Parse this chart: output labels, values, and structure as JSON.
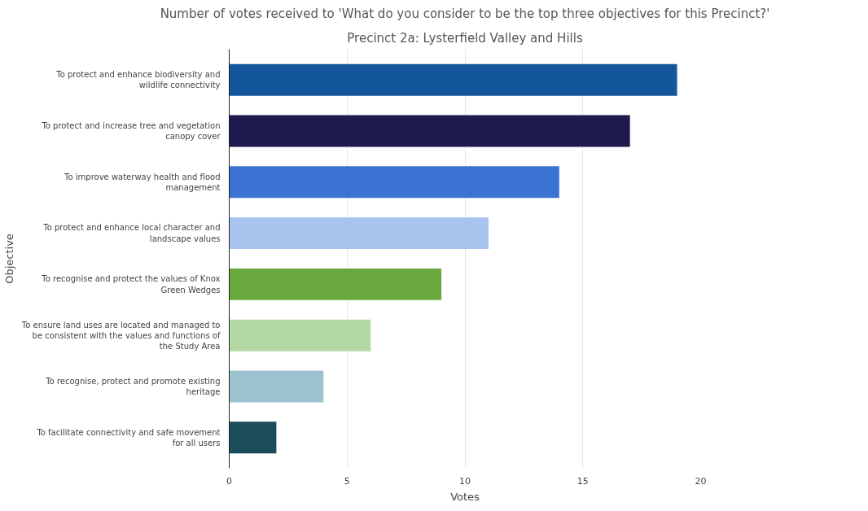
{
  "chart_data": {
    "type": "bar",
    "orientation": "horizontal",
    "title": "Number of votes received to 'What do you consider to be the top three objectives for this Precinct?'",
    "subtitle": "Precinct 2a: Lysterfield Valley and Hills",
    "xlabel": "Votes",
    "ylabel": "Objective",
    "categories": [
      "To protect and enhance biodiversity and wildlife connectivity",
      "To protect and increase tree and vegetation canopy cover",
      "To improve waterway health and flood management",
      "To protect and enhance local character and landscape values",
      "To recognise and protect the values of Knox Green Wedges",
      "To ensure land uses are located and managed to be consistent with the values and functions of the Study Area",
      "To recognise, protect and promote existing heritage",
      "To facilitate connectivity and safe movement for all users"
    ],
    "values": [
      19,
      17,
      14,
      11,
      9,
      6,
      4,
      2
    ],
    "colors": [
      "#14569c",
      "#1e1a50",
      "#3a73d2",
      "#a7c3ee",
      "#69a83d",
      "#b3d8a3",
      "#9cc2cf",
      "#1a4c5a"
    ],
    "xlim": [
      0,
      20
    ],
    "xticks": [
      0,
      5,
      10,
      15,
      20
    ],
    "grid": "x"
  }
}
